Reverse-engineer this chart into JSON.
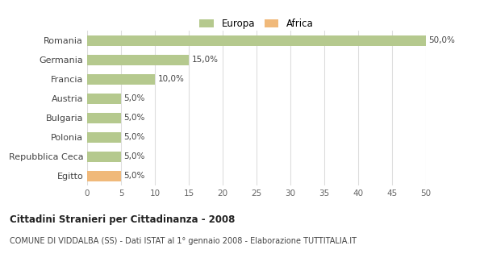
{
  "categories": [
    "Romania",
    "Germania",
    "Francia",
    "Austria",
    "Bulgaria",
    "Polonia",
    "Repubblica Ceca",
    "Egitto"
  ],
  "values": [
    50.0,
    15.0,
    10.0,
    5.0,
    5.0,
    5.0,
    5.0,
    5.0
  ],
  "colors": [
    "#b5c98e",
    "#b5c98e",
    "#b5c98e",
    "#b5c98e",
    "#b5c98e",
    "#b5c98e",
    "#b5c98e",
    "#f0b97a"
  ],
  "legend": [
    {
      "label": "Europa",
      "color": "#b5c98e"
    },
    {
      "label": "Africa",
      "color": "#f0b97a"
    }
  ],
  "xlim": [
    0,
    50
  ],
  "xticks": [
    0,
    5,
    10,
    15,
    20,
    25,
    30,
    35,
    40,
    45,
    50
  ],
  "title": "Cittadini Stranieri per Cittadinanza - 2008",
  "subtitle": "COMUNE DI VIDDALBA (SS) - Dati ISTAT al 1° gennaio 2008 - Elaborazione TUTTITALIA.IT",
  "bar_labels": [
    "50,0%",
    "15,0%",
    "10,0%",
    "5,0%",
    "5,0%",
    "5,0%",
    "5,0%",
    "5,0%"
  ],
  "background_color": "#ffffff",
  "grid_color": "#dddddd"
}
